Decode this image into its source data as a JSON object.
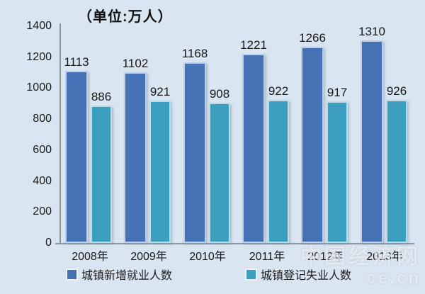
{
  "chart_data": {
    "type": "bar",
    "title": "（单位:万人）",
    "categories": [
      "2008年",
      "2009年",
      "2010年",
      "2011年",
      "2012年",
      "2013年"
    ],
    "series": [
      {
        "name": "城镇新增就业人数",
        "color": "#4472B4",
        "values": [
          1113,
          1102,
          1168,
          1221,
          1266,
          1310
        ]
      },
      {
        "name": "城镇登记失业人数",
        "color": "#3D9FBF",
        "values": [
          886,
          921,
          908,
          922,
          917,
          926
        ]
      }
    ],
    "ylim": [
      0,
      1400
    ],
    "yticks": [
      0,
      200,
      400,
      600,
      800,
      1000,
      1200,
      1400
    ],
    "grid": false,
    "legend_position": "bottom",
    "data_labels": true
  },
  "watermark": {
    "line1": "中国经济网",
    "line2": "ce.cn"
  },
  "colors": {
    "background": "#D9E5F1",
    "axis": "#8B96A3",
    "label_text": "#1A1A1A"
  }
}
